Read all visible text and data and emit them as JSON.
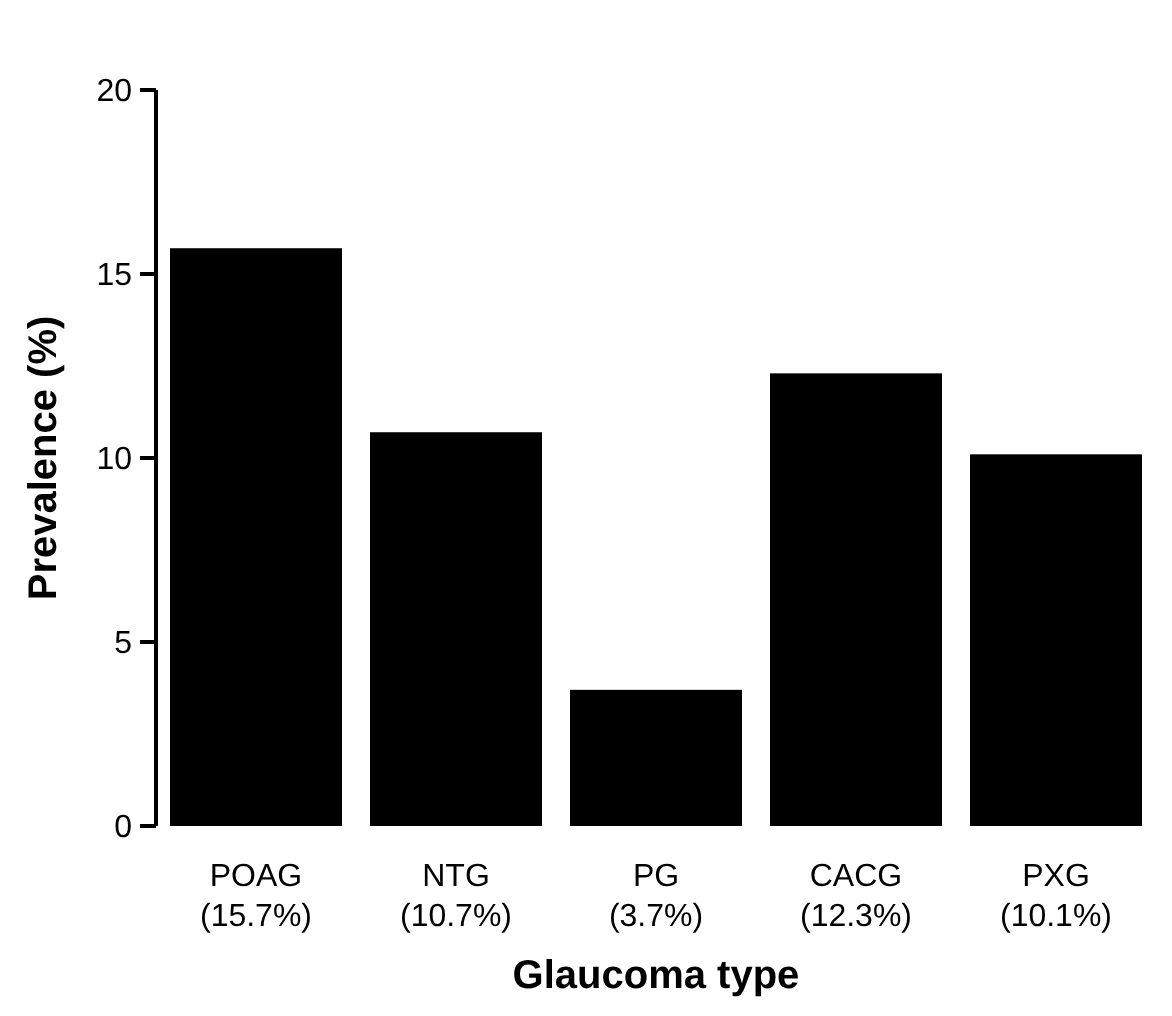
{
  "chart_data": {
    "type": "bar",
    "xlabel": "Glaucoma type",
    "ylabel": "Prevalence (%)",
    "categories": [
      "POAG\n(15.7%)",
      "NTG\n(10.7%)",
      "PG\n(3.7%)",
      "CACG\n(12.3%)",
      "PXG\n(10.1%)"
    ],
    "values": [
      15.7,
      10.7,
      3.7,
      12.3,
      10.1
    ],
    "color": "#000000",
    "ylim": [
      0,
      20
    ],
    "yticks": [
      0,
      5,
      10,
      15,
      20
    ],
    "grid": false
  }
}
